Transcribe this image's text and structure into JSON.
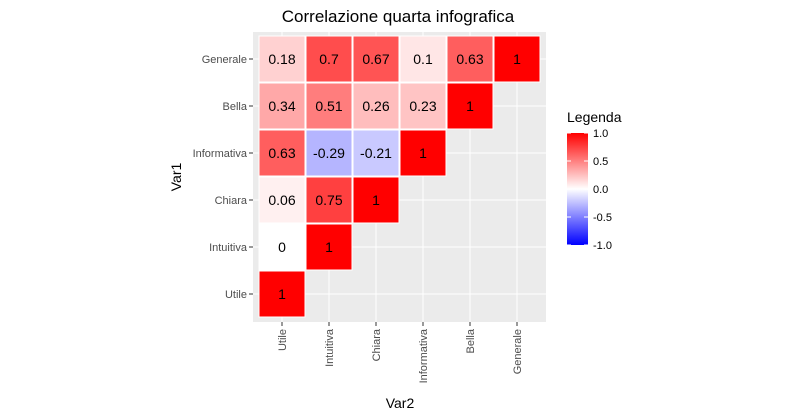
{
  "chart_data": {
    "type": "heatmap",
    "title": "Correlazione quarta infografica",
    "xlabel": "Var2",
    "ylabel": "Var1",
    "x_categories": [
      "Utile",
      "Intuitiva",
      "Chiara",
      "Informativa",
      "Bella",
      "Generale"
    ],
    "y_categories": [
      "Utile",
      "Intuitiva",
      "Chiara",
      "Informativa",
      "Bella",
      "Generale"
    ],
    "cells": [
      {
        "x": "Utile",
        "y": "Utile",
        "value": 1
      },
      {
        "x": "Utile",
        "y": "Intuitiva",
        "value": 0
      },
      {
        "x": "Intuitiva",
        "y": "Intuitiva",
        "value": 1
      },
      {
        "x": "Utile",
        "y": "Chiara",
        "value": 0.06
      },
      {
        "x": "Intuitiva",
        "y": "Chiara",
        "value": 0.75
      },
      {
        "x": "Chiara",
        "y": "Chiara",
        "value": 1
      },
      {
        "x": "Utile",
        "y": "Informativa",
        "value": 0.63
      },
      {
        "x": "Intuitiva",
        "y": "Informativa",
        "value": -0.29
      },
      {
        "x": "Chiara",
        "y": "Informativa",
        "value": -0.21
      },
      {
        "x": "Informativa",
        "y": "Informativa",
        "value": 1
      },
      {
        "x": "Utile",
        "y": "Bella",
        "value": 0.34
      },
      {
        "x": "Intuitiva",
        "y": "Bella",
        "value": 0.51
      },
      {
        "x": "Chiara",
        "y": "Bella",
        "value": 0.26
      },
      {
        "x": "Informativa",
        "y": "Bella",
        "value": 0.23
      },
      {
        "x": "Bella",
        "y": "Bella",
        "value": 1
      },
      {
        "x": "Utile",
        "y": "Generale",
        "value": 0.18
      },
      {
        "x": "Intuitiva",
        "y": "Generale",
        "value": 0.7
      },
      {
        "x": "Chiara",
        "y": "Generale",
        "value": 0.67
      },
      {
        "x": "Informativa",
        "y": "Generale",
        "value": 0.1
      },
      {
        "x": "Bella",
        "y": "Generale",
        "value": 0.63
      },
      {
        "x": "Generale",
        "y": "Generale",
        "value": 1
      }
    ],
    "legend": {
      "title": "Legenda",
      "ticks": [
        "1.0",
        "0.5",
        "0.0",
        "-0.5",
        "-1.0"
      ],
      "tick_values": [
        1,
        0.5,
        0,
        -0.5,
        -1
      ],
      "range": [
        -1,
        1
      ],
      "colors": {
        "low": "#0000ff",
        "mid": "#ffffff",
        "high": "#ff0000"
      }
    },
    "panel_background": "#ebebeb",
    "grid": true
  }
}
